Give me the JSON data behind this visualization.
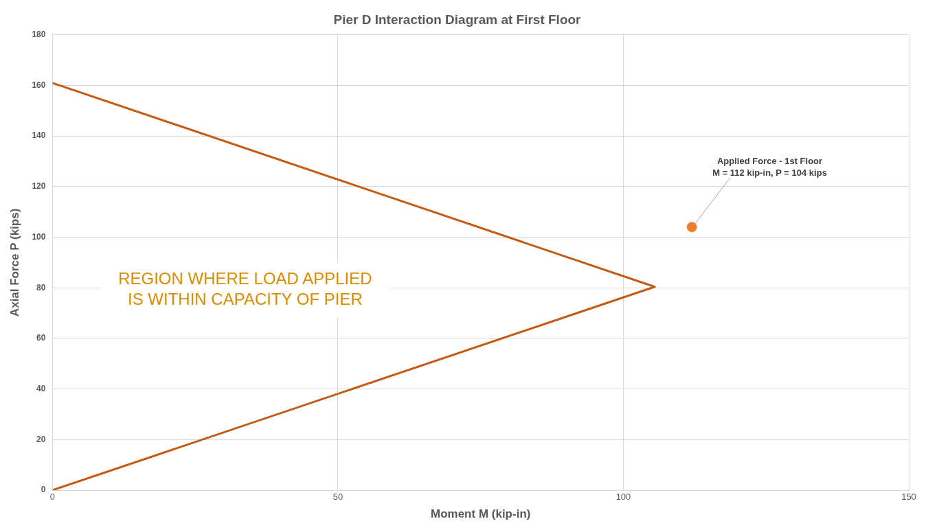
{
  "chart_data": {
    "type": "line",
    "title": "Pier D Interaction Diagram at First Floor",
    "xlabel": "Moment M (kip-in)",
    "ylabel": "Axial Force P (kips)",
    "series": [
      {
        "color": "#c55a11",
        "x": [
          0,
          105.5,
          0
        ],
        "values": [
          161,
          80.4,
          0
        ]
      },
      {
        "type": "scatter",
        "color": "#ed7d31",
        "x": [
          112
        ],
        "values": [
          104
        ]
      }
    ],
    "xlim": [
      0,
      150
    ],
    "xticks": [
      0,
      50,
      100,
      150
    ],
    "ylim": [
      0,
      180
    ],
    "yticks": [
      0,
      20,
      40,
      60,
      80,
      100,
      120,
      140,
      160,
      180
    ],
    "grid": true,
    "legend": false,
    "line_style": "solid",
    "annotations": [
      {
        "text": "Applied Force - 1st Floor\nM = 112 kip-in, P = 104 kips",
        "x": 112,
        "y": 104
      },
      "REGION WHERE LOAD APPLIED\nIS WITHIN CAPACITY OF PIER"
    ]
  }
}
